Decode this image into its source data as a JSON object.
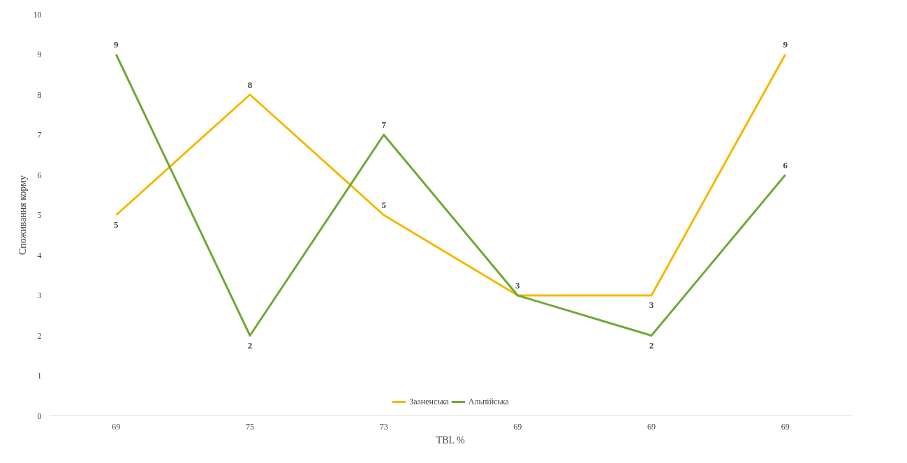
{
  "chart_data": {
    "type": "line",
    "xlabel": "TBL %",
    "ylabel": "Споживання корму",
    "categories": [
      "69",
      "75",
      "73",
      "69",
      "69",
      "69"
    ],
    "series": [
      {
        "name": "Зааненська",
        "color": "#f5b800",
        "values": [
          5,
          8,
          5,
          3,
          3,
          9
        ],
        "value_labels": [
          "5",
          "8",
          "5",
          null,
          "3",
          "9"
        ]
      },
      {
        "name": "Альпійська",
        "color": "#70a838",
        "values": [
          9,
          2,
          7,
          3,
          2,
          6
        ],
        "value_labels": [
          "9",
          "2",
          "7",
          "3",
          "2",
          "6"
        ]
      }
    ],
    "ylim": [
      0,
      10
    ],
    "yticks": [
      0,
      1,
      2,
      3,
      4,
      5,
      6,
      7,
      8,
      9,
      10
    ],
    "legend": "bottom",
    "grid": false,
    "line_style": "solid"
  }
}
